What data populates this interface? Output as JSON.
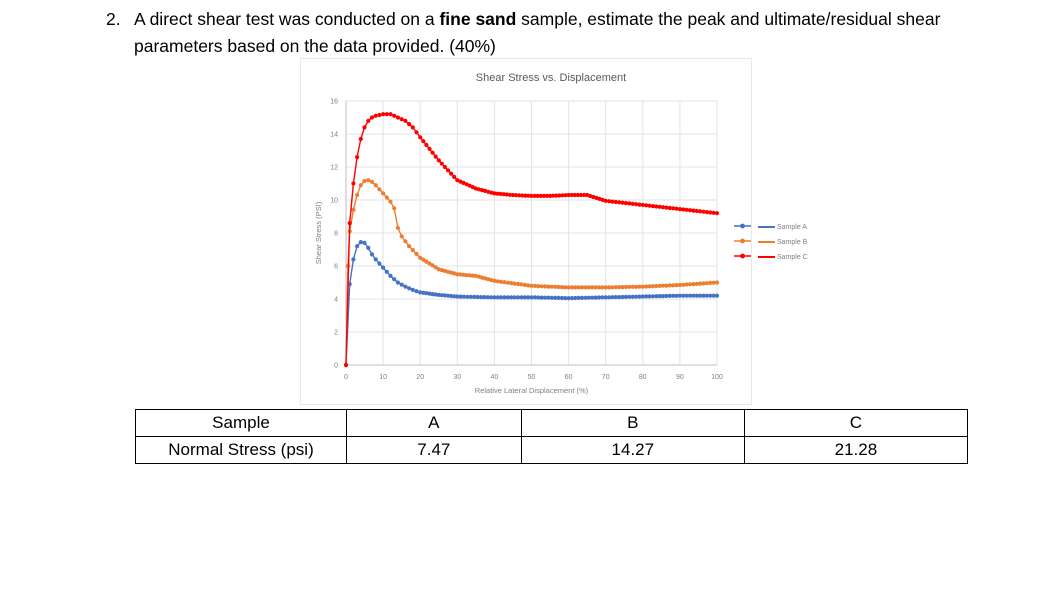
{
  "question": {
    "number": "2.",
    "text_before": "A direct shear test was conducted on a ",
    "text_bold": "fine sand",
    "text_after": " sample, estimate the peak and ultimate/residual shear parameters based on the data provided. (40%)"
  },
  "table": {
    "row_headers": [
      "Sample",
      "Normal Stress (psi)"
    ],
    "samples": [
      "A",
      "B",
      "C"
    ],
    "normal_stress": [
      "7.47",
      "14.27",
      "21.28"
    ]
  },
  "chart_data": {
    "type": "line",
    "title": "Shear Stress vs. Displacement",
    "xlabel": "Relative Lateral Displacement (%)",
    "ylabel": "Shear Stress (PSI)",
    "xlim": [
      0,
      100
    ],
    "ylim": [
      0,
      16
    ],
    "xticks": [
      0,
      10,
      20,
      30,
      40,
      50,
      60,
      70,
      80,
      90,
      100
    ],
    "yticks": [
      0,
      2,
      4,
      6,
      8,
      10,
      12,
      14,
      16
    ],
    "grid": true,
    "legend_position": "right",
    "series": [
      {
        "name": "Sample A",
        "color": "#4472C4",
        "x": [
          0,
          1,
          2,
          3,
          4,
          5,
          6,
          7,
          8,
          10,
          12,
          14,
          16,
          18,
          20,
          25,
          30,
          40,
          50,
          60,
          70,
          80,
          90,
          100
        ],
        "y": [
          0,
          4.9,
          6.4,
          7.2,
          7.45,
          7.4,
          7.1,
          6.7,
          6.4,
          5.9,
          5.4,
          5.0,
          4.75,
          4.55,
          4.4,
          4.25,
          4.15,
          4.1,
          4.1,
          4.05,
          4.1,
          4.15,
          4.2,
          4.2
        ]
      },
      {
        "name": "Sample B",
        "color": "#ED7D31",
        "x": [
          0,
          0.5,
          1,
          2,
          3,
          4,
          5,
          6,
          7,
          8,
          10,
          12,
          13,
          14,
          15,
          17,
          20,
          25,
          30,
          35,
          40,
          50,
          60,
          70,
          80,
          90,
          100
        ],
        "y": [
          0,
          6.0,
          8.1,
          9.4,
          10.3,
          10.9,
          11.15,
          11.2,
          11.1,
          10.9,
          10.4,
          9.9,
          9.5,
          8.3,
          7.8,
          7.2,
          6.5,
          5.8,
          5.5,
          5.4,
          5.1,
          4.8,
          4.7,
          4.7,
          4.75,
          4.85,
          5.0
        ]
      },
      {
        "name": "Sample C",
        "color": "#FF0000",
        "x": [
          0,
          1,
          2,
          3,
          4,
          5,
          6,
          7,
          8,
          10,
          12,
          14,
          16,
          18,
          20,
          25,
          30,
          35,
          40,
          45,
          50,
          55,
          60,
          65,
          70,
          80,
          90,
          100
        ],
        "y": [
          0,
          8.6,
          11.0,
          12.6,
          13.7,
          14.4,
          14.8,
          15.0,
          15.1,
          15.2,
          15.2,
          15.0,
          14.8,
          14.4,
          13.8,
          12.4,
          11.2,
          10.7,
          10.4,
          10.3,
          10.25,
          10.25,
          10.3,
          10.3,
          9.95,
          9.7,
          9.45,
          9.2
        ]
      }
    ]
  }
}
